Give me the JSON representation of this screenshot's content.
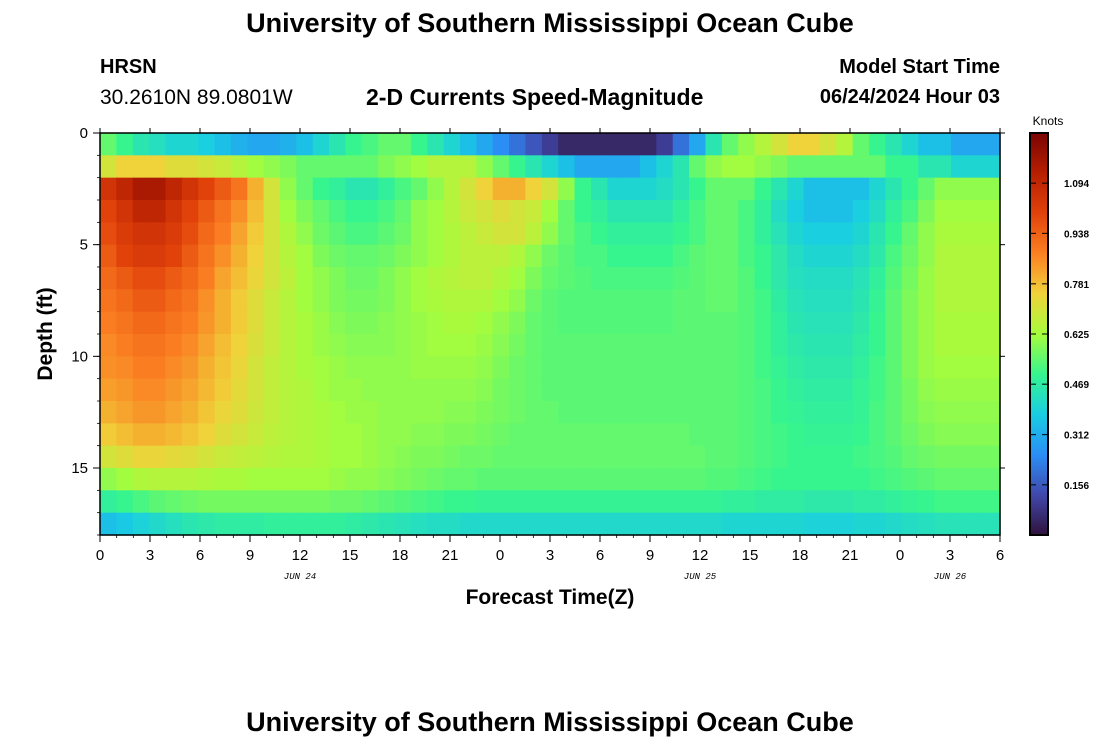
{
  "header": {
    "title": "University of Southern Mississippi Ocean Cube",
    "station": "HRSN",
    "coordinates": "30.2610N  89.0801W",
    "chart_title": "2-D Currents Speed-Magnitude",
    "start_label": "Model Start Time",
    "start_value": "06/24/2024 Hour 03"
  },
  "footer": {
    "title": "University of Southern Mississippi Ocean Cube"
  },
  "chart_data": {
    "type": "heatmap",
    "title": "2-D Currents Speed-Magnitude",
    "xlabel": "Forecast Time(Z)",
    "ylabel": "Depth (ft)",
    "x_tick_labels": [
      "0",
      "3",
      "6",
      "9",
      "12",
      "15",
      "18",
      "21",
      "0",
      "3",
      "6",
      "9",
      "12",
      "15",
      "18",
      "21",
      "0",
      "3",
      "6"
    ],
    "date_labels": [
      {
        "label": "JUN 24",
        "at_tick": 4
      },
      {
        "label": "JUN 25",
        "at_tick": 12
      },
      {
        "label": "JUN 26",
        "at_tick": 17
      }
    ],
    "y_ticks": [
      0,
      5,
      10,
      15
    ],
    "y_range": [
      0,
      18
    ],
    "x_range_hours": [
      0,
      54
    ],
    "colorbar": {
      "label": "Knots",
      "ticks": [
        "0.156",
        "0.312",
        "0.469",
        "0.625",
        "0.781",
        "0.938",
        "1.094"
      ],
      "range": [
        0,
        1.25
      ]
    },
    "grid": false,
    "note_values": "speed in knots, sampled hourly (55 columns, hour 0-54) at 18 depth bins (0.5-17.5 ft); values estimated from colors",
    "values": [
      [
        0.55,
        0.5,
        0.45,
        0.43,
        0.4,
        0.4,
        0.38,
        0.35,
        0.32,
        0.3,
        0.3,
        0.32,
        0.35,
        0.4,
        0.45,
        0.5,
        0.52,
        0.55,
        0.55,
        0.5,
        0.45,
        0.4,
        0.35,
        0.3,
        0.25,
        0.2,
        0.15,
        0.1,
        0.05,
        0.05,
        0.05,
        0.05,
        0.05,
        0.05,
        0.1,
        0.2,
        0.3,
        0.45,
        0.55,
        0.6,
        0.65,
        0.7,
        0.75,
        0.75,
        0.7,
        0.65,
        0.55,
        0.5,
        0.45,
        0.4,
        0.35,
        0.35,
        0.3,
        0.3,
        0.3
      ],
      [
        0.7,
        0.75,
        0.75,
        0.75,
        0.72,
        0.72,
        0.7,
        0.68,
        0.65,
        0.62,
        0.6,
        0.58,
        0.55,
        0.55,
        0.55,
        0.55,
        0.55,
        0.58,
        0.6,
        0.62,
        0.65,
        0.65,
        0.65,
        0.6,
        0.55,
        0.5,
        0.45,
        0.4,
        0.35,
        0.3,
        0.3,
        0.3,
        0.3,
        0.35,
        0.4,
        0.45,
        0.55,
        0.6,
        0.62,
        0.62,
        0.6,
        0.58,
        0.55,
        0.55,
        0.55,
        0.55,
        0.55,
        0.55,
        0.5,
        0.5,
        0.45,
        0.45,
        0.4,
        0.4,
        0.4
      ],
      [
        1.05,
        1.1,
        1.15,
        1.15,
        1.1,
        1.05,
        1.0,
        0.95,
        0.9,
        0.8,
        0.7,
        0.6,
        0.55,
        0.5,
        0.48,
        0.45,
        0.45,
        0.48,
        0.52,
        0.55,
        0.6,
        0.65,
        0.7,
        0.75,
        0.8,
        0.8,
        0.75,
        0.7,
        0.6,
        0.5,
        0.45,
        0.4,
        0.4,
        0.4,
        0.42,
        0.45,
        0.5,
        0.55,
        0.55,
        0.55,
        0.5,
        0.45,
        0.4,
        0.35,
        0.35,
        0.35,
        0.35,
        0.4,
        0.45,
        0.5,
        0.55,
        0.6,
        0.6,
        0.6,
        0.6
      ],
      [
        1.0,
        1.05,
        1.1,
        1.1,
        1.05,
        1.0,
        0.95,
        0.9,
        0.85,
        0.78,
        0.7,
        0.62,
        0.58,
        0.55,
        0.52,
        0.5,
        0.5,
        0.52,
        0.55,
        0.6,
        0.62,
        0.65,
        0.68,
        0.7,
        0.72,
        0.7,
        0.68,
        0.62,
        0.55,
        0.5,
        0.48,
        0.45,
        0.45,
        0.45,
        0.45,
        0.48,
        0.52,
        0.55,
        0.55,
        0.52,
        0.48,
        0.42,
        0.38,
        0.35,
        0.35,
        0.35,
        0.38,
        0.42,
        0.48,
        0.52,
        0.58,
        0.62,
        0.62,
        0.62,
        0.62
      ],
      [
        0.98,
        1.02,
        1.05,
        1.05,
        1.02,
        0.98,
        0.92,
        0.88,
        0.82,
        0.76,
        0.7,
        0.64,
        0.6,
        0.56,
        0.54,
        0.52,
        0.52,
        0.54,
        0.56,
        0.6,
        0.62,
        0.64,
        0.66,
        0.68,
        0.7,
        0.7,
        0.66,
        0.6,
        0.55,
        0.52,
        0.5,
        0.48,
        0.48,
        0.48,
        0.48,
        0.5,
        0.52,
        0.55,
        0.55,
        0.52,
        0.48,
        0.44,
        0.4,
        0.38,
        0.38,
        0.38,
        0.4,
        0.45,
        0.5,
        0.55,
        0.6,
        0.63,
        0.63,
        0.63,
        0.63
      ],
      [
        0.95,
        1.0,
        1.02,
        1.02,
        1.0,
        0.95,
        0.9,
        0.85,
        0.8,
        0.75,
        0.7,
        0.65,
        0.62,
        0.58,
        0.56,
        0.55,
        0.55,
        0.56,
        0.58,
        0.6,
        0.62,
        0.64,
        0.66,
        0.66,
        0.66,
        0.64,
        0.6,
        0.56,
        0.54,
        0.52,
        0.52,
        0.5,
        0.5,
        0.5,
        0.5,
        0.52,
        0.54,
        0.55,
        0.55,
        0.52,
        0.5,
        0.46,
        0.42,
        0.4,
        0.4,
        0.4,
        0.42,
        0.46,
        0.52,
        0.56,
        0.6,
        0.64,
        0.64,
        0.64,
        0.64
      ],
      [
        0.92,
        0.95,
        0.98,
        0.98,
        0.95,
        0.92,
        0.88,
        0.82,
        0.78,
        0.74,
        0.7,
        0.66,
        0.62,
        0.6,
        0.58,
        0.56,
        0.56,
        0.58,
        0.6,
        0.62,
        0.64,
        0.65,
        0.66,
        0.66,
        0.64,
        0.62,
        0.58,
        0.55,
        0.54,
        0.53,
        0.52,
        0.52,
        0.52,
        0.52,
        0.52,
        0.53,
        0.54,
        0.55,
        0.55,
        0.53,
        0.5,
        0.46,
        0.43,
        0.42,
        0.42,
        0.42,
        0.44,
        0.48,
        0.53,
        0.57,
        0.61,
        0.64,
        0.64,
        0.64,
        0.64
      ],
      [
        0.9,
        0.92,
        0.95,
        0.95,
        0.92,
        0.9,
        0.85,
        0.8,
        0.76,
        0.72,
        0.68,
        0.65,
        0.62,
        0.6,
        0.58,
        0.57,
        0.57,
        0.58,
        0.6,
        0.62,
        0.63,
        0.64,
        0.64,
        0.64,
        0.62,
        0.6,
        0.56,
        0.54,
        0.53,
        0.53,
        0.53,
        0.53,
        0.53,
        0.53,
        0.53,
        0.54,
        0.54,
        0.55,
        0.55,
        0.53,
        0.51,
        0.47,
        0.44,
        0.43,
        0.43,
        0.43,
        0.45,
        0.49,
        0.54,
        0.58,
        0.61,
        0.64,
        0.64,
        0.64,
        0.64
      ],
      [
        0.88,
        0.9,
        0.92,
        0.92,
        0.9,
        0.88,
        0.84,
        0.8,
        0.76,
        0.72,
        0.68,
        0.65,
        0.63,
        0.61,
        0.59,
        0.58,
        0.58,
        0.59,
        0.6,
        0.61,
        0.62,
        0.63,
        0.63,
        0.62,
        0.6,
        0.58,
        0.55,
        0.54,
        0.53,
        0.53,
        0.53,
        0.53,
        0.53,
        0.53,
        0.53,
        0.54,
        0.54,
        0.54,
        0.54,
        0.53,
        0.51,
        0.48,
        0.45,
        0.44,
        0.44,
        0.44,
        0.46,
        0.5,
        0.54,
        0.58,
        0.61,
        0.63,
        0.63,
        0.63,
        0.63
      ],
      [
        0.86,
        0.88,
        0.9,
        0.9,
        0.88,
        0.86,
        0.82,
        0.78,
        0.75,
        0.71,
        0.68,
        0.65,
        0.63,
        0.61,
        0.6,
        0.59,
        0.59,
        0.59,
        0.6,
        0.61,
        0.62,
        0.62,
        0.62,
        0.61,
        0.59,
        0.57,
        0.55,
        0.54,
        0.54,
        0.54,
        0.54,
        0.54,
        0.54,
        0.54,
        0.54,
        0.54,
        0.54,
        0.54,
        0.54,
        0.53,
        0.51,
        0.48,
        0.46,
        0.45,
        0.45,
        0.45,
        0.47,
        0.5,
        0.54,
        0.58,
        0.61,
        0.63,
        0.63,
        0.63,
        0.63
      ],
      [
        0.85,
        0.86,
        0.88,
        0.88,
        0.86,
        0.84,
        0.8,
        0.77,
        0.74,
        0.7,
        0.67,
        0.65,
        0.63,
        0.62,
        0.61,
        0.6,
        0.6,
        0.6,
        0.6,
        0.61,
        0.61,
        0.61,
        0.61,
        0.6,
        0.58,
        0.56,
        0.55,
        0.54,
        0.54,
        0.54,
        0.54,
        0.54,
        0.54,
        0.54,
        0.54,
        0.54,
        0.54,
        0.54,
        0.54,
        0.53,
        0.51,
        0.49,
        0.47,
        0.46,
        0.46,
        0.46,
        0.48,
        0.51,
        0.54,
        0.58,
        0.61,
        0.62,
        0.62,
        0.62,
        0.62
      ],
      [
        0.83,
        0.84,
        0.86,
        0.86,
        0.84,
        0.82,
        0.79,
        0.76,
        0.73,
        0.7,
        0.67,
        0.65,
        0.64,
        0.62,
        0.61,
        0.61,
        0.6,
        0.6,
        0.6,
        0.6,
        0.6,
        0.6,
        0.6,
        0.59,
        0.57,
        0.56,
        0.55,
        0.54,
        0.54,
        0.54,
        0.54,
        0.54,
        0.54,
        0.54,
        0.54,
        0.54,
        0.54,
        0.54,
        0.54,
        0.53,
        0.52,
        0.5,
        0.48,
        0.47,
        0.47,
        0.47,
        0.49,
        0.51,
        0.54,
        0.57,
        0.6,
        0.61,
        0.61,
        0.61,
        0.61
      ],
      [
        0.8,
        0.82,
        0.84,
        0.84,
        0.82,
        0.8,
        0.77,
        0.74,
        0.72,
        0.69,
        0.67,
        0.65,
        0.64,
        0.63,
        0.62,
        0.61,
        0.61,
        0.6,
        0.6,
        0.6,
        0.6,
        0.59,
        0.59,
        0.58,
        0.57,
        0.56,
        0.55,
        0.55,
        0.54,
        0.54,
        0.54,
        0.54,
        0.54,
        0.54,
        0.54,
        0.54,
        0.54,
        0.54,
        0.54,
        0.53,
        0.52,
        0.5,
        0.49,
        0.48,
        0.48,
        0.48,
        0.49,
        0.52,
        0.54,
        0.57,
        0.59,
        0.6,
        0.6,
        0.6,
        0.6
      ],
      [
        0.76,
        0.78,
        0.8,
        0.8,
        0.79,
        0.77,
        0.75,
        0.72,
        0.7,
        0.68,
        0.66,
        0.65,
        0.64,
        0.63,
        0.62,
        0.62,
        0.61,
        0.6,
        0.6,
        0.59,
        0.59,
        0.58,
        0.58,
        0.57,
        0.56,
        0.55,
        0.55,
        0.55,
        0.55,
        0.55,
        0.55,
        0.55,
        0.55,
        0.55,
        0.55,
        0.55,
        0.54,
        0.54,
        0.54,
        0.53,
        0.52,
        0.51,
        0.5,
        0.49,
        0.49,
        0.49,
        0.5,
        0.52,
        0.54,
        0.56,
        0.58,
        0.59,
        0.59,
        0.59,
        0.59
      ],
      [
        0.7,
        0.72,
        0.74,
        0.74,
        0.73,
        0.72,
        0.7,
        0.68,
        0.67,
        0.66,
        0.65,
        0.64,
        0.64,
        0.63,
        0.62,
        0.62,
        0.61,
        0.6,
        0.59,
        0.58,
        0.58,
        0.57,
        0.56,
        0.56,
        0.55,
        0.55,
        0.55,
        0.55,
        0.55,
        0.55,
        0.55,
        0.55,
        0.55,
        0.55,
        0.55,
        0.55,
        0.55,
        0.54,
        0.54,
        0.53,
        0.52,
        0.51,
        0.5,
        0.5,
        0.5,
        0.5,
        0.51,
        0.52,
        0.53,
        0.55,
        0.56,
        0.57,
        0.57,
        0.57,
        0.57
      ],
      [
        0.6,
        0.62,
        0.64,
        0.65,
        0.65,
        0.65,
        0.64,
        0.63,
        0.63,
        0.62,
        0.62,
        0.62,
        0.62,
        0.62,
        0.61,
        0.6,
        0.6,
        0.59,
        0.58,
        0.57,
        0.56,
        0.55,
        0.55,
        0.54,
        0.54,
        0.54,
        0.54,
        0.54,
        0.54,
        0.54,
        0.54,
        0.54,
        0.54,
        0.54,
        0.54,
        0.54,
        0.54,
        0.53,
        0.53,
        0.52,
        0.51,
        0.5,
        0.5,
        0.5,
        0.5,
        0.5,
        0.5,
        0.51,
        0.52,
        0.53,
        0.54,
        0.55,
        0.55,
        0.55,
        0.55
      ],
      [
        0.48,
        0.5,
        0.52,
        0.54,
        0.55,
        0.56,
        0.57,
        0.57,
        0.57,
        0.57,
        0.57,
        0.57,
        0.57,
        0.57,
        0.56,
        0.56,
        0.55,
        0.54,
        0.53,
        0.52,
        0.51,
        0.5,
        0.5,
        0.49,
        0.49,
        0.49,
        0.49,
        0.49,
        0.49,
        0.49,
        0.49,
        0.49,
        0.49,
        0.49,
        0.49,
        0.49,
        0.49,
        0.49,
        0.48,
        0.48,
        0.47,
        0.47,
        0.47,
        0.46,
        0.46,
        0.46,
        0.47,
        0.47,
        0.48,
        0.49,
        0.5,
        0.51,
        0.51,
        0.51,
        0.51
      ],
      [
        0.35,
        0.37,
        0.39,
        0.41,
        0.43,
        0.45,
        0.46,
        0.47,
        0.47,
        0.47,
        0.48,
        0.48,
        0.48,
        0.48,
        0.48,
        0.47,
        0.46,
        0.45,
        0.44,
        0.43,
        0.42,
        0.42,
        0.41,
        0.41,
        0.41,
        0.41,
        0.41,
        0.41,
        0.41,
        0.41,
        0.41,
        0.41,
        0.41,
        0.41,
        0.41,
        0.41,
        0.41,
        0.41,
        0.4,
        0.4,
        0.4,
        0.4,
        0.4,
        0.39,
        0.39,
        0.39,
        0.4,
        0.4,
        0.41,
        0.42,
        0.43,
        0.44,
        0.44,
        0.44,
        0.44
      ]
    ]
  }
}
